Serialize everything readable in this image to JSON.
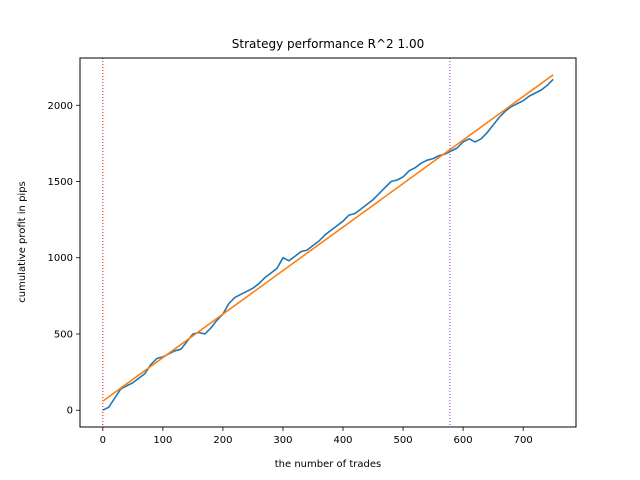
{
  "chart_data": {
    "type": "line",
    "title": "Strategy performance R^2 1.00",
    "xlabel": "the number of trades",
    "ylabel": "cumulative profit in pips",
    "xlim": [
      -38,
      788
    ],
    "ylim": [
      -110,
      2310
    ],
    "xticks": [
      0,
      100,
      200,
      300,
      400,
      500,
      600,
      700
    ],
    "yticks": [
      0,
      500,
      1000,
      1500,
      2000
    ],
    "grid": false,
    "legend": "none",
    "series": [
      {
        "color": "#1f77b4",
        "x": [
          0,
          10,
          20,
          30,
          40,
          50,
          60,
          70,
          80,
          90,
          100,
          110,
          120,
          130,
          140,
          150,
          160,
          170,
          180,
          190,
          200,
          210,
          220,
          230,
          240,
          250,
          260,
          270,
          280,
          290,
          300,
          310,
          320,
          330,
          340,
          350,
          360,
          370,
          380,
          390,
          400,
          410,
          420,
          430,
          440,
          450,
          460,
          470,
          480,
          490,
          500,
          510,
          520,
          530,
          540,
          550,
          560,
          570,
          580,
          590,
          600,
          610,
          620,
          630,
          640,
          650,
          660,
          670,
          680,
          690,
          700,
          710,
          720,
          730,
          740,
          750
        ],
        "y": [
          0,
          20,
          80,
          140,
          160,
          180,
          210,
          240,
          300,
          340,
          350,
          370,
          390,
          400,
          450,
          500,
          510,
          500,
          540,
          590,
          630,
          700,
          740,
          760,
          780,
          800,
          830,
          870,
          900,
          930,
          1000,
          980,
          1010,
          1040,
          1050,
          1080,
          1110,
          1150,
          1180,
          1210,
          1240,
          1280,
          1290,
          1320,
          1350,
          1380,
          1420,
          1460,
          1500,
          1510,
          1530,
          1570,
          1590,
          1620,
          1640,
          1650,
          1670,
          1680,
          1700,
          1720,
          1760,
          1780,
          1760,
          1780,
          1820,
          1870,
          1920,
          1960,
          1990,
          2010,
          2030,
          2060,
          2080,
          2100,
          2130,
          2170
        ]
      },
      {
        "color": "#ff7f0e",
        "x": [
          0,
          750
        ],
        "y": [
          60,
          2200
        ]
      }
    ],
    "vlines": [
      {
        "x": 0,
        "color": "#ff0000",
        "style": "dotted"
      },
      {
        "x": 578,
        "color": "#8a2be2",
        "style": "dotted"
      }
    ]
  }
}
